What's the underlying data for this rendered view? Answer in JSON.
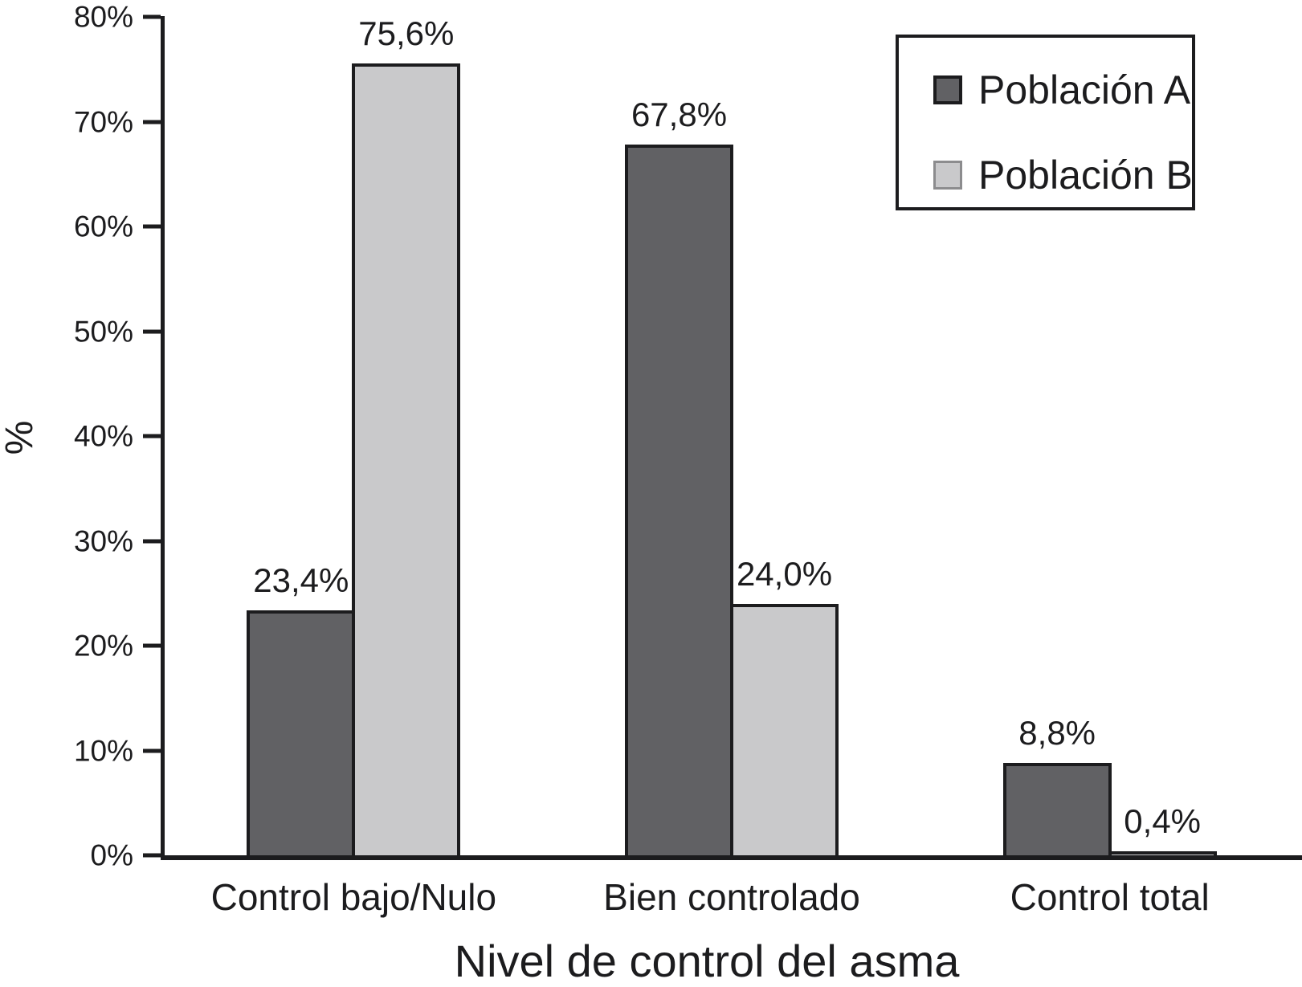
{
  "colors": {
    "background": "#ffffff",
    "axis": "#1c1c1e",
    "text": "#1c1c1e",
    "series_a": "#616164",
    "series_b": "#c9c9cb"
  },
  "chart_data": {
    "type": "bar",
    "xlabel": "Nivel de control del asma",
    "ylabel": "%",
    "ylim": [
      0,
      80
    ],
    "yticks": [
      0,
      10,
      20,
      30,
      40,
      50,
      60,
      70,
      80
    ],
    "ytick_labels": [
      "0%",
      "10%",
      "20%",
      "30%",
      "40%",
      "50%",
      "60%",
      "70%",
      "80%"
    ],
    "categories": [
      "Control bajo/Nulo",
      "Bien controlado",
      "Control total"
    ],
    "series": [
      {
        "name": "Población A",
        "color": "#616164",
        "values": [
          23.4,
          67.8,
          8.8
        ],
        "value_labels": [
          "23,4%",
          "67,8%",
          "8,8%"
        ]
      },
      {
        "name": "Población B",
        "color": "#c9c9cb",
        "values": [
          75.6,
          24.0,
          0.4
        ],
        "value_labels": [
          "75,6%",
          "24,0%",
          "0,4%"
        ]
      }
    ],
    "legend_position": "top-right",
    "grid": false
  }
}
